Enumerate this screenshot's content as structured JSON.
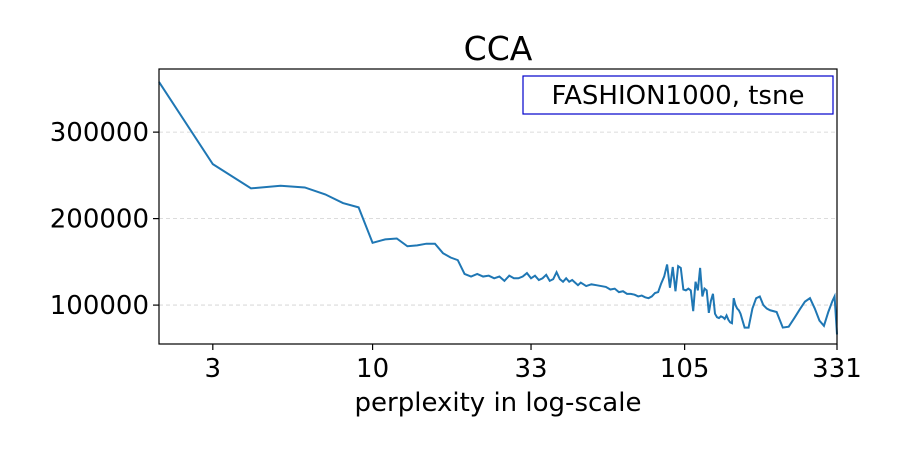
{
  "chart_data": {
    "type": "line",
    "title": "CCA",
    "xlabel": "perplexity in log-scale",
    "ylabel": "",
    "x_scale": "log",
    "xlim": [
      2,
      331
    ],
    "ylim": [
      55000,
      373000
    ],
    "x_ticks": [
      3,
      10,
      33,
      105,
      331
    ],
    "x_tick_labels": [
      "3",
      "10",
      "33",
      "105",
      "331"
    ],
    "y_ticks": [
      100000,
      200000,
      300000
    ],
    "y_tick_labels": [
      "100000",
      "200000",
      "300000"
    ],
    "grid": "horizontal dashed",
    "legend_position": "top-right",
    "annotation": "FASHION1000, tsne",
    "colors": {
      "line": "#1f77b4",
      "annotation_border": "#0000cc",
      "grid": "#d0d0d0"
    },
    "series": [
      {
        "x": [
          2,
          3,
          4,
          5,
          6,
          7,
          8,
          9,
          10,
          11,
          12,
          13,
          14,
          15,
          16,
          17,
          18,
          19,
          20,
          21,
          22,
          23,
          24,
          25,
          26,
          27,
          28,
          29,
          30,
          31,
          32,
          33,
          34,
          35,
          36,
          37,
          38,
          39,
          40,
          41,
          42,
          43,
          44,
          45,
          46,
          47,
          48,
          49,
          50,
          52,
          54,
          56,
          58,
          60,
          62,
          64,
          66,
          68,
          70,
          72,
          74,
          76,
          78,
          80,
          82,
          84,
          86,
          88,
          90,
          92,
          94,
          96,
          98,
          100,
          102,
          104,
          106,
          108,
          110,
          112,
          114,
          116,
          118,
          120,
          122,
          124,
          126,
          128,
          130,
          132,
          134,
          136,
          138,
          140,
          142,
          144,
          146,
          148,
          150,
          152,
          154,
          156,
          158,
          160,
          165,
          170,
          175,
          180,
          185,
          190,
          195,
          200,
          210,
          220,
          230,
          240,
          250,
          260,
          270,
          280,
          290,
          300,
          310,
          320,
          325,
          331
        ],
        "y": [
          358000,
          263000,
          235000,
          238000,
          236000,
          228000,
          218000,
          213000,
          172000,
          176000,
          177000,
          168000,
          169000,
          171000,
          171000,
          160000,
          155000,
          152000,
          136000,
          133000,
          136000,
          133000,
          134000,
          131000,
          133000,
          128000,
          134000,
          131000,
          131000,
          133000,
          137000,
          131000,
          134000,
          129000,
          131000,
          135000,
          128000,
          130000,
          138000,
          130000,
          127000,
          131000,
          127000,
          129000,
          126000,
          123000,
          126000,
          124000,
          122000,
          124000,
          123000,
          122000,
          121000,
          118000,
          119000,
          115000,
          116000,
          113000,
          113000,
          112000,
          110000,
          111000,
          109000,
          108000,
          110000,
          114000,
          115000,
          125000,
          133000,
          147000,
          120000,
          144000,
          116000,
          145000,
          143000,
          118000,
          117000,
          119000,
          117000,
          93000,
          127000,
          117000,
          143000,
          110000,
          119000,
          117000,
          91000,
          105000,
          113000,
          90000,
          86000,
          85000,
          87000,
          86000,
          84000,
          88000,
          83000,
          80000,
          79000,
          108000,
          100000,
          96000,
          94000,
          90000,
          74000,
          74000,
          96000,
          108000,
          110000,
          100000,
          96000,
          94000,
          92000,
          74000,
          75000,
          85000,
          95000,
          104000,
          108000,
          96000,
          82000,
          76000,
          92000,
          105000,
          110000,
          66000
        ]
      }
    ]
  }
}
